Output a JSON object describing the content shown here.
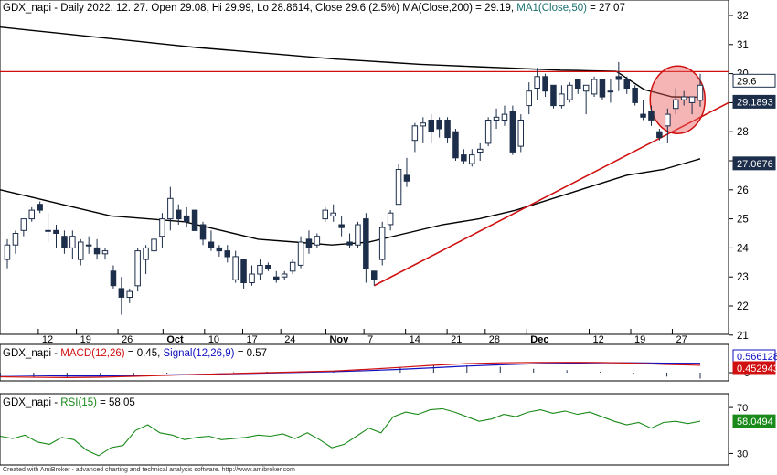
{
  "panes": {
    "price": {
      "header": {
        "symbol": "GDX_napi",
        "rest": " - Daily 2022. 12. 27. Open 29.08, Hi 29.99, Lo 28.8614, Close 29.6 (2.5%) MA(Close,200) = 29.19, ",
        "ma50_label": "MA1(Close,50)",
        "ma50_value": " = 27.07"
      },
      "badges": {
        "close": "29.6",
        "ma200": "29.1893",
        "ma50": "27.0676"
      },
      "y_ticks": [
        "21",
        "22",
        "23",
        "24",
        "25",
        "26",
        "27",
        "28",
        "29",
        "30",
        "31",
        "32"
      ],
      "x_labels": [
        "12",
        "19",
        "26",
        "Oct",
        "10",
        "17",
        "24",
        "Nov",
        "7",
        "14",
        "21",
        "28",
        "Dec",
        "12",
        "19",
        "27"
      ]
    },
    "macd": {
      "header": {
        "symbol": "GDX_napi",
        "sep": " - ",
        "macd_label": "MACD(12,26)",
        "macd_value": " = 0.45, ",
        "signal_label": "Signal(12,26,9)",
        "signal_value": " = 0.57"
      },
      "badges": {
        "signal": "0.566128",
        "macd": "0.452943"
      },
      "y_ticks": [
        "0"
      ]
    },
    "rsi": {
      "header": {
        "symbol": "GDX_napi",
        "sep": " - ",
        "rsi_label": "RSI(15)",
        "rsi_value": " = 58.05"
      },
      "badges": {
        "rsi": "58.0494"
      },
      "y_ticks": [
        "70",
        "30"
      ]
    }
  },
  "footer": "Created with AmiBroker - advanced charting and technical analysis software. http://www.amibroker.com",
  "colors": {
    "up_candle": "#ffffff",
    "down_candle": "#1c2e4a",
    "ma200": "#000000",
    "ma50": "#000000",
    "resistance": "#d01010",
    "trendline": "#d01010",
    "macd": "#d01010",
    "signal": "#1010c0",
    "rsi": "#1a8a1a",
    "badge_close": "#ffffff",
    "badge_ma": "#1c2e4a"
  },
  "chart_data": {
    "type": "candlestick",
    "symbol": "GDX_napi",
    "period": "Daily",
    "ylim": [
      21,
      32
    ],
    "x_axis_labels": [
      "12",
      "19",
      "26",
      "Oct",
      "10",
      "17",
      "24",
      "Nov",
      "7",
      "14",
      "21",
      "28",
      "Dec",
      "12",
      "19",
      "27"
    ],
    "ohlc": [
      [
        23.6,
        24.3,
        23.3,
        24.1
      ],
      [
        24.1,
        24.6,
        23.8,
        24.5
      ],
      [
        24.6,
        25.0,
        24.4,
        25.0
      ],
      [
        25.0,
        25.4,
        24.9,
        25.3
      ],
      [
        25.5,
        25.6,
        25.2,
        25.3
      ],
      [
        24.6,
        25.2,
        24.2,
        24.6
      ],
      [
        24.6,
        24.8,
        24.0,
        24.5
      ],
      [
        24.4,
        24.6,
        23.8,
        24.0
      ],
      [
        24.0,
        24.6,
        23.6,
        24.4
      ],
      [
        23.6,
        24.3,
        23.4,
        24.2
      ],
      [
        24.1,
        24.4,
        23.8,
        24.1
      ],
      [
        24.0,
        24.3,
        23.6,
        23.8
      ],
      [
        23.8,
        24.0,
        23.6,
        23.9
      ],
      [
        23.2,
        23.4,
        22.6,
        22.7
      ],
      [
        22.6,
        23.0,
        21.7,
        22.3
      ],
      [
        22.3,
        22.6,
        22.1,
        22.5
      ],
      [
        22.7,
        24.0,
        22.5,
        23.9
      ],
      [
        23.6,
        24.1,
        23.1,
        24.0
      ],
      [
        23.9,
        24.6,
        23.7,
        24.3
      ],
      [
        24.4,
        25.2,
        24.0,
        25.0
      ],
      [
        25.0,
        26.1,
        24.6,
        25.7
      ],
      [
        25.3,
        25.5,
        24.8,
        25.0
      ],
      [
        25.1,
        25.4,
        24.7,
        24.9
      ],
      [
        25.3,
        25.3,
        24.6,
        24.6
      ],
      [
        24.8,
        24.9,
        24.1,
        24.3
      ],
      [
        24.2,
        24.6,
        23.9,
        24.0
      ],
      [
        24.0,
        24.1,
        23.7,
        23.9
      ],
      [
        23.9,
        24.1,
        23.5,
        23.7
      ],
      [
        22.9,
        23.9,
        22.8,
        23.7
      ],
      [
        23.6,
        23.6,
        22.6,
        22.8
      ],
      [
        22.8,
        23.4,
        22.7,
        23.1
      ],
      [
        23.1,
        23.6,
        22.9,
        23.4
      ],
      [
        23.4,
        23.5,
        23.2,
        23.3
      ],
      [
        23.0,
        23.2,
        22.8,
        22.9
      ],
      [
        23.0,
        23.2,
        22.9,
        23.1
      ],
      [
        23.2,
        23.6,
        23.1,
        23.5
      ],
      [
        23.4,
        24.4,
        23.3,
        24.2
      ],
      [
        24.3,
        24.6,
        23.8,
        24.0
      ],
      [
        24.1,
        24.5,
        24.0,
        24.4
      ],
      [
        25.0,
        25.4,
        24.9,
        25.3
      ],
      [
        25.1,
        25.5,
        24.9,
        25.2
      ],
      [
        24.8,
        25.1,
        24.4,
        24.7
      ],
      [
        24.2,
        24.5,
        24.0,
        24.1
      ],
      [
        24.1,
        24.9,
        24.0,
        24.8
      ],
      [
        25.0,
        25.2,
        22.8,
        23.3
      ],
      [
        23.2,
        23.2,
        22.7,
        22.9
      ],
      [
        23.6,
        24.9,
        23.4,
        24.7
      ],
      [
        24.8,
        25.3,
        24.6,
        25.2
      ],
      [
        25.5,
        26.9,
        25.5,
        26.7
      ],
      [
        26.5,
        27.1,
        26.1,
        26.3
      ],
      [
        27.7,
        28.3,
        27.3,
        28.2
      ],
      [
        28.2,
        28.5,
        27.6,
        28.3
      ],
      [
        28.4,
        28.6,
        27.6,
        28.0
      ],
      [
        28.4,
        28.5,
        27.8,
        28.1
      ],
      [
        28.4,
        28.5,
        27.6,
        27.8
      ],
      [
        28.0,
        28.1,
        27.0,
        27.1
      ],
      [
        27.2,
        27.4,
        26.9,
        27.0
      ],
      [
        26.9,
        27.4,
        26.8,
        27.2
      ],
      [
        27.3,
        27.6,
        27.0,
        27.4
      ],
      [
        27.6,
        28.5,
        27.5,
        28.4
      ],
      [
        28.4,
        28.8,
        28.1,
        28.5
      ],
      [
        28.4,
        28.9,
        28.2,
        28.6
      ],
      [
        28.7,
        28.9,
        27.2,
        27.3
      ],
      [
        27.5,
        28.6,
        27.3,
        28.4
      ],
      [
        28.9,
        29.7,
        28.6,
        29.4
      ],
      [
        29.5,
        30.2,
        29.1,
        29.9
      ],
      [
        29.9,
        30.0,
        29.2,
        29.4
      ],
      [
        29.6,
        29.6,
        28.8,
        28.9
      ],
      [
        28.9,
        29.6,
        28.8,
        29.3
      ],
      [
        29.1,
        29.7,
        29.0,
        29.6
      ],
      [
        29.8,
        29.8,
        29.3,
        29.5
      ],
      [
        29.4,
        29.6,
        28.6,
        29.6
      ],
      [
        29.3,
        29.9,
        29.2,
        29.8
      ],
      [
        29.8,
        29.8,
        29.1,
        29.2
      ],
      [
        29.4,
        29.8,
        29.0,
        29.4
      ],
      [
        29.9,
        30.4,
        29.4,
        29.8
      ],
      [
        29.8,
        29.9,
        29.3,
        29.5
      ],
      [
        29.5,
        29.6,
        28.9,
        29.0
      ],
      [
        28.6,
        29.1,
        28.4,
        28.5
      ],
      [
        28.7,
        28.9,
        28.2,
        28.4
      ],
      [
        28.0,
        28.1,
        27.7,
        27.8
      ],
      [
        28.2,
        28.8,
        27.6,
        28.6
      ],
      [
        28.8,
        29.5,
        28.6,
        29.1
      ],
      [
        29.1,
        29.4,
        28.9,
        29.2
      ],
      [
        29.0,
        29.2,
        28.6,
        29.2
      ],
      [
        29.08,
        29.99,
        28.8614,
        29.6
      ]
    ],
    "series": [
      {
        "name": "MA(Close,200)",
        "values": [
          31.6,
          31.5,
          31.4,
          31.3,
          31.2,
          31.1,
          31.0,
          30.9,
          30.82,
          30.74,
          30.66,
          30.58,
          30.5,
          30.44,
          30.38,
          30.32,
          30.28,
          30.24,
          30.2,
          30.16,
          30.12,
          30.1,
          30.08,
          29.45,
          29.2,
          29.19
        ]
      },
      {
        "name": "MA1(Close,50)",
        "values": [
          26.0,
          25.7,
          25.4,
          25.1,
          25.0,
          24.9,
          24.6,
          24.3,
          24.2,
          24.1,
          24.2,
          24.5,
          24.8,
          25.0,
          25.3,
          25.7,
          26.1,
          26.5,
          26.7,
          27.07
        ]
      },
      {
        "name": "MACD(12,26)",
        "values": [
          -0.25,
          -0.28,
          -0.3,
          -0.28,
          -0.22,
          -0.16,
          -0.1,
          -0.05,
          0.0,
          0.05,
          0.1,
          0.2,
          0.32,
          0.45,
          0.55,
          0.6,
          0.62,
          0.63,
          0.62,
          0.58,
          0.5,
          0.45
        ]
      },
      {
        "name": "Signal(12,26,9)",
        "values": [
          -0.15,
          -0.18,
          -0.2,
          -0.2,
          -0.18,
          -0.14,
          -0.1,
          -0.06,
          -0.02,
          0.02,
          0.06,
          0.12,
          0.2,
          0.3,
          0.4,
          0.48,
          0.54,
          0.58,
          0.6,
          0.6,
          0.58,
          0.57
        ]
      },
      {
        "name": "RSI(15)",
        "values": [
          45,
          43,
          46,
          40,
          38,
          44,
          42,
          33,
          28,
          35,
          37,
          50,
          55,
          48,
          46,
          42,
          44,
          45,
          42,
          43,
          44,
          46,
          45,
          47,
          43,
          48,
          42,
          35,
          38,
          45,
          52,
          48,
          62,
          66,
          64,
          68,
          69,
          66,
          62,
          58,
          60,
          64,
          62,
          66,
          68,
          65,
          67,
          64,
          66,
          62,
          58,
          55,
          57,
          52,
          57,
          58,
          56,
          58.05
        ]
      }
    ],
    "annotations": [
      {
        "kind": "horizontal-line",
        "value": 30.07
      },
      {
        "kind": "trendline",
        "from": [
          45,
          22.7
        ],
        "to": [
          85,
          29.0
        ]
      },
      {
        "kind": "circle",
        "around_bar": 82
      }
    ],
    "title": "GDX_napi - Daily 2022. 12. 27.",
    "grid": false
  }
}
